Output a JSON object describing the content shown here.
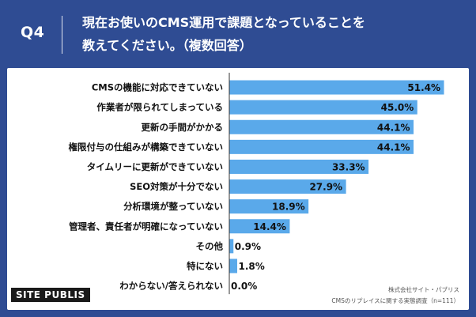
{
  "header": {
    "question_number": "Q4",
    "title_line1": "現在お使いのCMS運用で課題となっていることを",
    "title_line2": "教えてください。（複数回答）"
  },
  "footer": {
    "company": "株式会社サイト・パブリス",
    "survey": "CMSのリプレイスに関する実態調査（n=111）",
    "logo_text": "SITE PUBLIS"
  },
  "colors": {
    "background": "#2f4c93",
    "bar": "#5aa9ea",
    "axis": "#333333"
  },
  "chart_data": {
    "type": "bar",
    "orientation": "horizontal",
    "categories": [
      "CMSの機能に対応できていない",
      "作業者が限られてしまっている",
      "更新の手間がかかる",
      "権限付与の仕組みが構築できていない",
      "タイムリーに更新ができていない",
      "SEO対策が十分でない",
      "分析環境が整っていない",
      "管理者、責任者が明確になっていない",
      "その他",
      "特にない",
      "わからない/答えられない"
    ],
    "values": [
      51.4,
      45.0,
      44.1,
      44.1,
      33.3,
      27.9,
      18.9,
      14.4,
      0.9,
      1.8,
      0.0
    ],
    "value_labels": [
      "51.4%",
      "45.0%",
      "44.1%",
      "44.1%",
      "33.3%",
      "27.9%",
      "18.9%",
      "14.4%",
      "0.9%",
      "1.8%",
      "0.0%"
    ],
    "xlim": [
      0,
      55
    ]
  }
}
